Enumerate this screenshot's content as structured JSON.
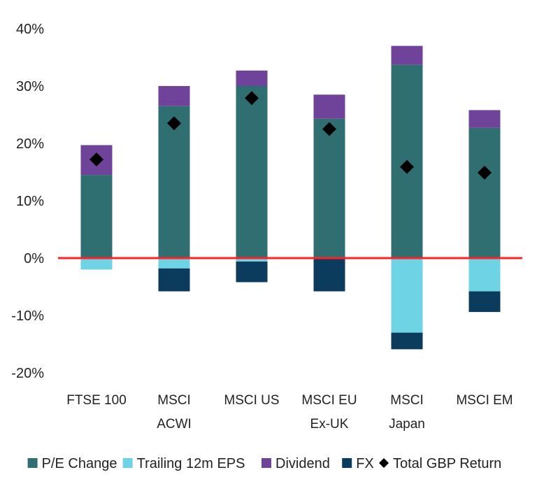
{
  "chart_data": {
    "type": "bar",
    "stacked": true,
    "categories": [
      [
        "FTSE 100"
      ],
      [
        "MSCI",
        "ACWI"
      ],
      [
        "MSCI US"
      ],
      [
        "MSCI EU",
        "Ex-UK"
      ],
      [
        "MSCI",
        "Japan"
      ],
      [
        "MSCI EM"
      ]
    ],
    "series": [
      {
        "name": "P/E Change",
        "color": "#2f6f72",
        "values": [
          14.5,
          26.5,
          30.0,
          24.3,
          33.7,
          22.7
        ]
      },
      {
        "name": "Trailing 12m EPS",
        "color": "#6fd3e6",
        "values": [
          -2.0,
          -1.8,
          -0.6,
          0.0,
          -13.0,
          -5.8
        ]
      },
      {
        "name": "Dividend",
        "color": "#70439a",
        "values": [
          5.2,
          3.5,
          2.7,
          4.2,
          3.3,
          3.1
        ]
      },
      {
        "name": "FX",
        "color": "#0b3c5d",
        "values": [
          0.0,
          -4.0,
          -3.6,
          -5.8,
          -2.9,
          -3.6
        ]
      }
    ],
    "total": {
      "name": "Total GBP Return",
      "color": "#000000",
      "values": [
        17.2,
        23.5,
        27.9,
        22.5,
        15.9,
        14.9
      ]
    },
    "y_ticks": [
      "40%",
      "30%",
      "20%",
      "10%",
      "0%",
      "-10%",
      "-20%"
    ],
    "y_tick_values": [
      40,
      30,
      20,
      10,
      0,
      -10,
      -20
    ],
    "ylim": [
      -20,
      40
    ],
    "zero_line_color": "#ff2222",
    "grid": false,
    "legend_position": "bottom"
  }
}
